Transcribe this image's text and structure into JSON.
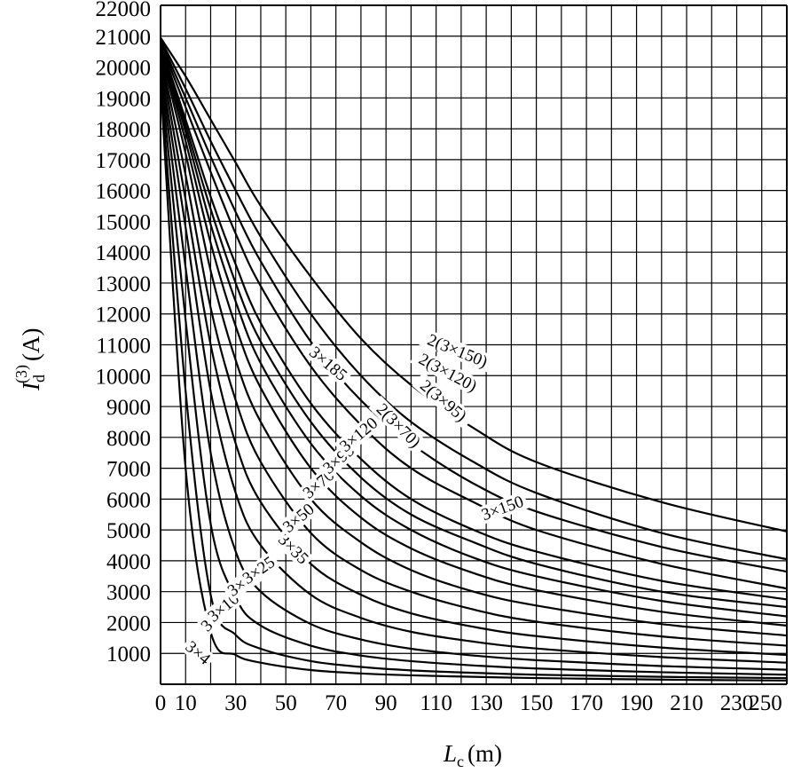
{
  "chart_data": {
    "type": "line",
    "xlabel": "L_c (m)",
    "ylabel": "I_d^(3) (A)",
    "xlim": [
      0,
      250
    ],
    "ylim": [
      0,
      22000
    ],
    "grid": true,
    "x_ticks": [
      "0",
      "10",
      "30",
      "50",
      "70",
      "90",
      "110",
      "130",
      "150",
      "170",
      "190",
      "210",
      "230",
      "250"
    ],
    "y_ticks": [
      "1000",
      "2000",
      "3000",
      "4000",
      "5000",
      "6000",
      "7000",
      "8000",
      "9000",
      "10000",
      "11000",
      "12000",
      "13000",
      "14000",
      "15000",
      "16000",
      "17000",
      "18000",
      "19000",
      "20000",
      "21000",
      "22000"
    ],
    "axis_label_text": {
      "x_main": "L",
      "x_sub": "c",
      "x_unit": "(m)",
      "y_main": "I",
      "y_sub": "d",
      "y_sup": "(3)",
      "y_unit": "(A)"
    },
    "x": [
      0,
      10,
      20,
      30,
      40,
      60,
      80,
      100,
      125,
      150,
      200,
      250
    ],
    "series": [
      {
        "name": "3×4",
        "values": [
          19500,
          7000,
          1700,
          950,
          700,
          460,
          350,
          290,
          240,
          200,
          150,
          120
        ]
      },
      {
        "name": "3×6",
        "values": [
          19600,
          9500,
          2900,
          1600,
          1150,
          750,
          560,
          450,
          370,
          310,
          240,
          200
        ]
      },
      {
        "name": "3×10",
        "values": [
          19800,
          11800,
          5200,
          2800,
          1900,
          1250,
          930,
          750,
          610,
          510,
          390,
          310
        ]
      },
      {
        "name": "3×16",
        "values": [
          20000,
          13500,
          7500,
          4300,
          3000,
          1950,
          1450,
          1150,
          930,
          780,
          590,
          470
        ]
      },
      {
        "name": "3×25",
        "values": [
          20100,
          14800,
          9500,
          6200,
          4500,
          2900,
          2150,
          1700,
          1380,
          1160,
          880,
          700
        ]
      },
      {
        "name": "3×35",
        "values": [
          20300,
          15700,
          11000,
          7800,
          5900,
          3900,
          2900,
          2300,
          1860,
          1560,
          1190,
          950
        ]
      },
      {
        "name": "3×50",
        "values": [
          20400,
          16500,
          12200,
          9200,
          7200,
          4900,
          3700,
          3000,
          2420,
          2030,
          1550,
          1250
        ]
      },
      {
        "name": "3×70",
        "values": [
          20500,
          17200,
          13400,
          10500,
          8500,
          6000,
          4600,
          3700,
          3000,
          2550,
          1950,
          1580
        ]
      },
      {
        "name": "3×95",
        "values": [
          20600,
          17600,
          14300,
          11600,
          9600,
          7000,
          5400,
          4400,
          3600,
          3050,
          2350,
          1900
        ]
      },
      {
        "name": "3×120",
        "values": [
          20650,
          17900,
          14900,
          12400,
          10400,
          7800,
          6100,
          5000,
          4100,
          3500,
          2700,
          2200
        ]
      },
      {
        "name": "3×150",
        "values": [
          20700,
          18100,
          15400,
          13000,
          11100,
          8500,
          6700,
          5500,
          4600,
          3900,
          3000,
          2500
        ]
      },
      {
        "name": "3×185",
        "values": [
          20750,
          18300,
          15800,
          13600,
          11700,
          9100,
          7300,
          6000,
          5000,
          4300,
          3350,
          2750
        ]
      },
      {
        "name": "2(3×70)",
        "values": [
          20800,
          18700,
          16600,
          14600,
          12900,
          10300,
          8400,
          7000,
          5900,
          5000,
          3900,
          3100
        ]
      },
      {
        "name": "2(3×95)",
        "values": [
          20850,
          19000,
          17100,
          15300,
          13700,
          11100,
          9200,
          7800,
          6500,
          5600,
          4450,
          3650
        ]
      },
      {
        "name": "2(3×120)",
        "values": [
          20900,
          19300,
          17600,
          16000,
          14500,
          12000,
          10000,
          8500,
          7200,
          6200,
          4900,
          4050
        ]
      },
      {
        "name": "2(3×150)",
        "values": [
          20950,
          19700,
          18300,
          16900,
          15500,
          13200,
          11200,
          9700,
          8300,
          7200,
          5900,
          4950
        ]
      }
    ],
    "labels": [
      {
        "text": "3×4",
        "at": [
          14,
          930
        ],
        "rot": 40
      },
      {
        "text": "3×6",
        "at": [
          22,
          2020
        ],
        "rot": -45
      },
      {
        "text": "3×10",
        "at": [
          26,
          2400
        ],
        "rot": -40
      },
      {
        "text": "3×16",
        "at": [
          34,
          3200
        ],
        "rot": -35
      },
      {
        "text": "3×25",
        "at": [
          40,
          3600
        ],
        "rot": -35
      },
      {
        "text": "3×35",
        "at": [
          52,
          4300
        ],
        "rot": 45
      },
      {
        "text": "3×50",
        "at": [
          56,
          5300
        ],
        "rot": -40
      },
      {
        "text": "3×70",
        "at": [
          64,
          6400
        ],
        "rot": -40
      },
      {
        "text": "3×95",
        "at": [
          72,
          7200
        ],
        "rot": -40
      },
      {
        "text": "3×120",
        "at": [
          80,
          8000
        ],
        "rot": -40
      },
      {
        "text": "3×150",
        "at": [
          137,
          5600
        ],
        "rot": -20
      },
      {
        "text": "3×185",
        "at": [
          66,
          10300
        ],
        "rot": 40
      },
      {
        "text": "2(3×70)",
        "at": [
          94,
          8300
        ],
        "rot": 45
      },
      {
        "text": "2(3×95)",
        "at": [
          112,
          9100
        ],
        "rot": 40
      },
      {
        "text": "2(3×120)",
        "at": [
          114,
          10000
        ],
        "rot": 28
      },
      {
        "text": "2(3×150)",
        "at": [
          118,
          10700
        ],
        "rot": 22
      }
    ]
  }
}
